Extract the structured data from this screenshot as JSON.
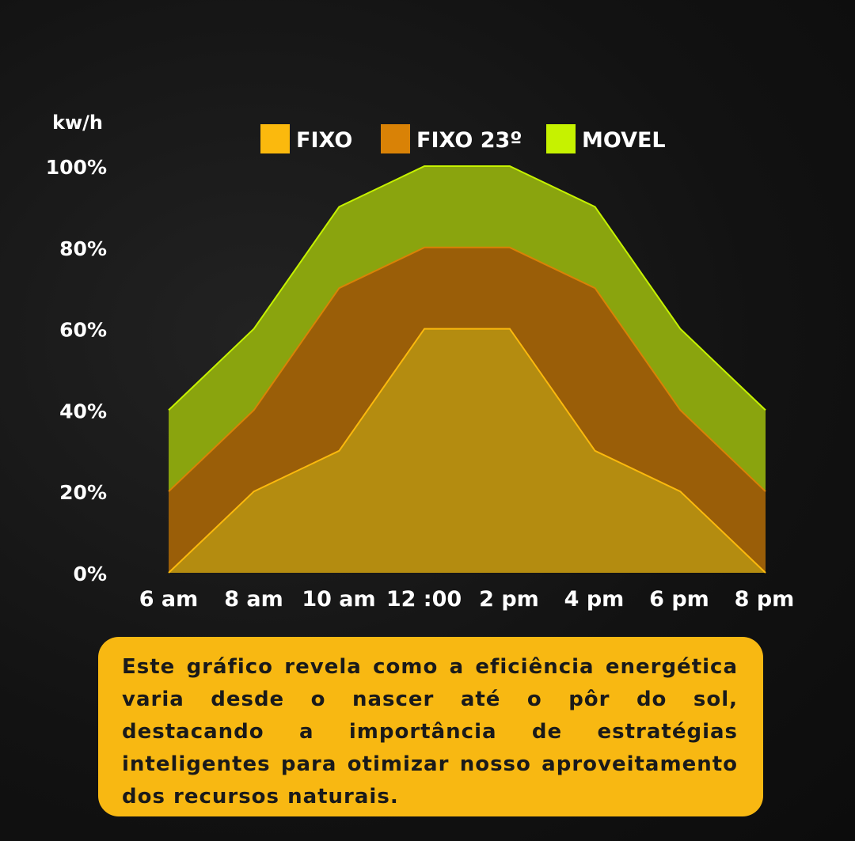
{
  "chart_data": {
    "type": "area",
    "ylabel": "kw/h",
    "ylim": [
      0,
      100
    ],
    "y_ticks": [
      "100%",
      "80%",
      "60%",
      "40%",
      "20%",
      "0%"
    ],
    "y_tick_values": [
      100,
      80,
      60,
      40,
      20,
      0
    ],
    "categories": [
      "6 am",
      "8 am",
      "10 am",
      "12 :00",
      "2 pm",
      "4 pm",
      "6 pm",
      "8 pm"
    ],
    "legend_position": "top",
    "series": [
      {
        "name": "MOVEL",
        "color": "#c6f200",
        "fill": "#8aa40e",
        "values": [
          40,
          60,
          90,
          100,
          100,
          90,
          60,
          40
        ]
      },
      {
        "name": "FIXO 23º",
        "color": "#d98206",
        "fill": "#9a5e08",
        "values": [
          20,
          40,
          70,
          80,
          80,
          70,
          40,
          20
        ]
      },
      {
        "name": "FIXO",
        "color": "#fbb90d",
        "fill": "#b48c10",
        "values": [
          0,
          20,
          30,
          60,
          60,
          30,
          20,
          0
        ]
      }
    ],
    "legend": [
      {
        "name": "FIXO",
        "color": "#fbb90d"
      },
      {
        "name": "FIXO 23º",
        "color": "#d98206"
      },
      {
        "name": "MOVEL",
        "color": "#c6f200"
      }
    ]
  },
  "caption": {
    "text": "Este gráfico revela como a eficiência energética varia desde o nascer até o pôr do sol, destacando a importância de estratégias inteligentes para otimizar nosso aproveitamento dos recursos naturais."
  }
}
